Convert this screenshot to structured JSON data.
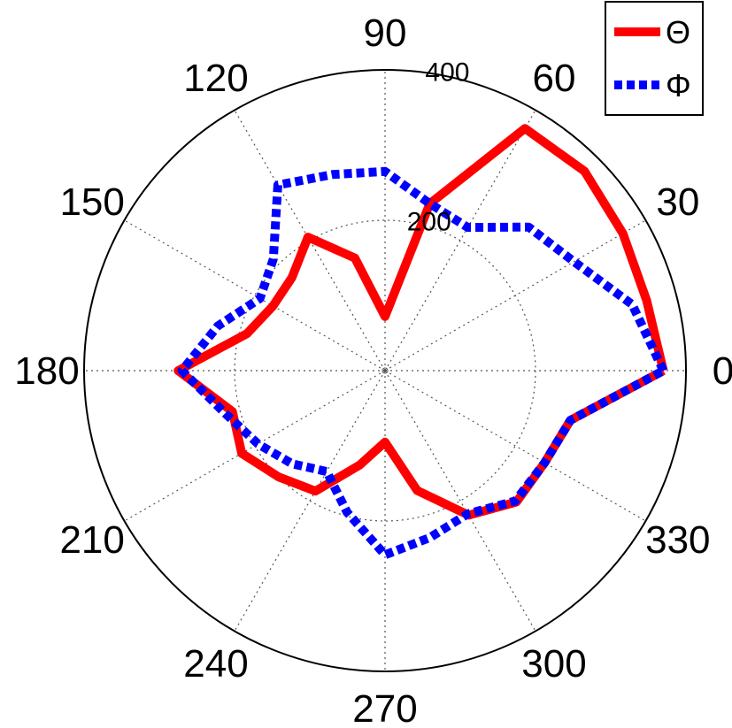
{
  "chart_data": {
    "type": "polar-line",
    "angle_unit": "degrees",
    "angle_ticks": [
      0,
      30,
      60,
      90,
      120,
      150,
      180,
      210,
      240,
      270,
      300,
      330
    ],
    "angle_tick_labels": [
      "0",
      "30",
      "60",
      "90",
      "120",
      "150",
      "180",
      "210",
      "240",
      "270",
      "300",
      "330"
    ],
    "r_ticks": [
      200,
      400
    ],
    "r_tick_labels": [
      "200",
      "400"
    ],
    "r_max": 400,
    "grid": true,
    "legend_position": "top-right",
    "series": [
      {
        "name": "Θ",
        "color": "#ff0000",
        "style": "solid",
        "angles": [
          0,
          15,
          30,
          45,
          60,
          75,
          90,
          105,
          120,
          135,
          150,
          165,
          180,
          195,
          210,
          225,
          240,
          255,
          270,
          285,
          300,
          315,
          330,
          345,
          360
        ],
        "values": [
          370,
          360,
          365,
          375,
          372,
          230,
          72,
          155,
          205,
          175,
          172,
          190,
          275,
          210,
          220,
          200,
          185,
          130,
          95,
          165,
          222,
          247,
          245,
          255,
          370
        ]
      },
      {
        "name": "Φ",
        "color": "#0000ff",
        "style": "dashed",
        "angles": [
          0,
          15,
          30,
          45,
          60,
          75,
          90,
          105,
          120,
          135,
          150,
          165,
          180,
          195,
          210,
          225,
          240,
          255,
          270,
          285,
          300,
          315,
          330,
          345,
          360
        ],
        "values": [
          370,
          340,
          290,
          270,
          220,
          230,
          265,
          270,
          285,
          210,
          192,
          230,
          270,
          220,
          195,
          175,
          155,
          195,
          245,
          230,
          220,
          245,
          245,
          255,
          370
        ]
      }
    ]
  }
}
